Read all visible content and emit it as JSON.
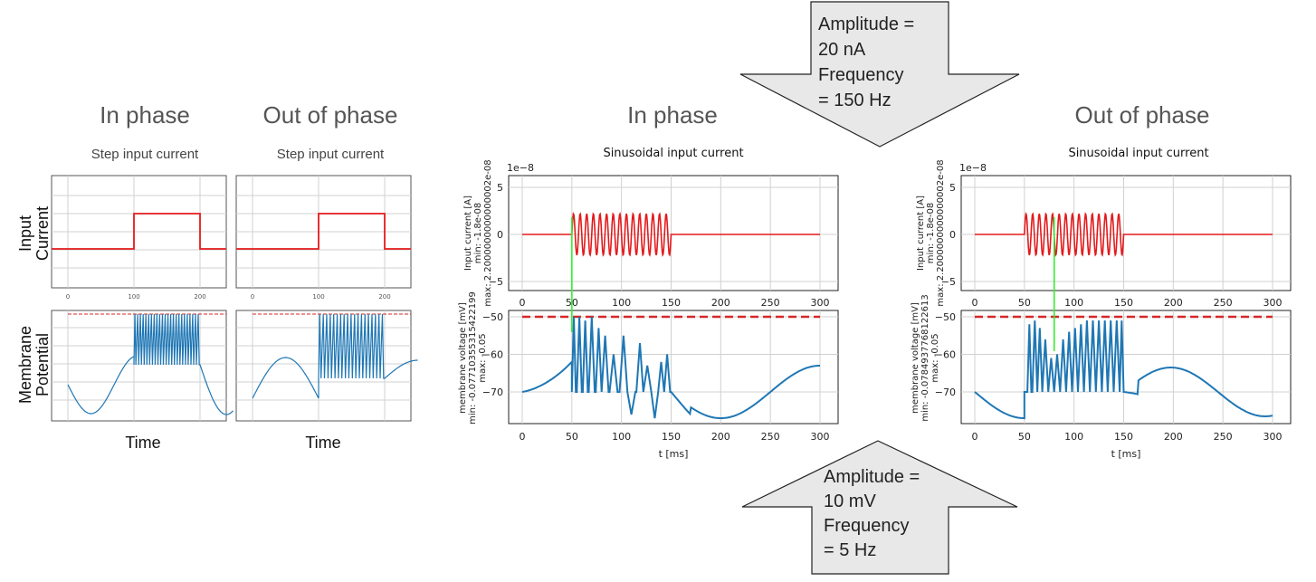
{
  "headings": {
    "in_phase": "In phase",
    "out_of_phase": "Out of phase"
  },
  "step_panels": {
    "title": "Step input current",
    "row_label_current": [
      "Input",
      "Current"
    ],
    "row_label_potential": [
      "Membrane",
      "Potential"
    ],
    "xlabel": "Time",
    "ticks": [
      "0",
      "100",
      "200"
    ]
  },
  "sin_panels": {
    "title": "Sinusoidal input current",
    "exponent": "1e−8",
    "top_ylabel": [
      "Input current [A]",
      "min: -1.8e-08",
      "max: 2.2000000000000002e-08"
    ],
    "bottom_ylabel_in": [
      "membrane voltage [mV]",
      "min: -0.07710355315422199",
      "max: -0.05"
    ],
    "bottom_ylabel_out": [
      "membrane voltage [mV]",
      "min: -0.0784937768122613",
      "max: -0.05"
    ],
    "xlabel": "t [ms]",
    "x_ticks": [
      "0",
      "50",
      "100",
      "150",
      "200",
      "250",
      "300"
    ],
    "top_y_ticks": [
      "5",
      "0",
      "−5"
    ],
    "bottom_y_ticks": [
      "−50",
      "−60",
      "−70"
    ]
  },
  "arrow_top": {
    "lines": [
      "Amplitude =",
      "20 nA",
      "Frequency",
      "= 150 Hz"
    ],
    "fill": "#e8e8e8"
  },
  "arrow_bottom": {
    "lines": [
      "Amplitude =",
      "10 mV",
      "Frequency",
      "= 5 Hz"
    ],
    "fill": "#e8e8e8"
  },
  "colors": {
    "current": "#e41a1c",
    "voltage": "#1f77b4",
    "threshold": "#d62728",
    "marker": "#33ee33",
    "grid": "#d0d0d0"
  },
  "chart_data": [
    {
      "type": "line",
      "title": "Step input current",
      "panel": "in-phase step",
      "xlabel": "Time",
      "x_ticks": [
        0,
        100,
        200
      ],
      "series": [
        {
          "role": "input current",
          "x": [
            0,
            100,
            100,
            200,
            200,
            250
          ],
          "y": [
            0,
            0,
            1,
            1,
            0,
            0
          ]
        }
      ],
      "notes": "membrane potential: slow sinusoid, dense spiking between 100 and 200, dashed threshold line"
    },
    {
      "type": "line",
      "title": "Step input current",
      "panel": "out-of-phase step",
      "xlabel": "Time",
      "x_ticks": [
        0,
        100,
        200
      ],
      "series": [
        {
          "role": "input current",
          "x": [
            0,
            100,
            100,
            200,
            200,
            250
          ],
          "y": [
            0,
            0,
            1,
            1,
            0,
            0
          ]
        }
      ]
    },
    {
      "type": "line",
      "title": "Sinusoidal input current",
      "panel": "in-phase sinusoidal",
      "xlabel": "t [ms]",
      "xlim": [
        0,
        300
      ],
      "current": {
        "unit_exponent": "1e-8",
        "ylim": [
          -6,
          6
        ],
        "amplitude": 2.2,
        "freq_hz": 150,
        "on": [
          50,
          150
        ]
      },
      "voltage": {
        "ylim": [
          -78,
          -49
        ],
        "threshold": -50,
        "reset": -70,
        "spike_range": [
          50,
          150
        ]
      },
      "marker_x": 50
    },
    {
      "type": "line",
      "title": "Sinusoidal input current",
      "panel": "out-of-phase sinusoidal",
      "xlabel": "t [ms]",
      "xlim": [
        0,
        300
      ],
      "current": {
        "unit_exponent": "1e-8",
        "ylim": [
          -6,
          6
        ],
        "amplitude": 2.2,
        "freq_hz": 150,
        "on": [
          50,
          150
        ]
      },
      "voltage": {
        "ylim": [
          -79,
          -49
        ],
        "threshold": -50,
        "reset": -70,
        "spike_range": [
          50,
          150
        ]
      },
      "marker_x": 80
    }
  ]
}
